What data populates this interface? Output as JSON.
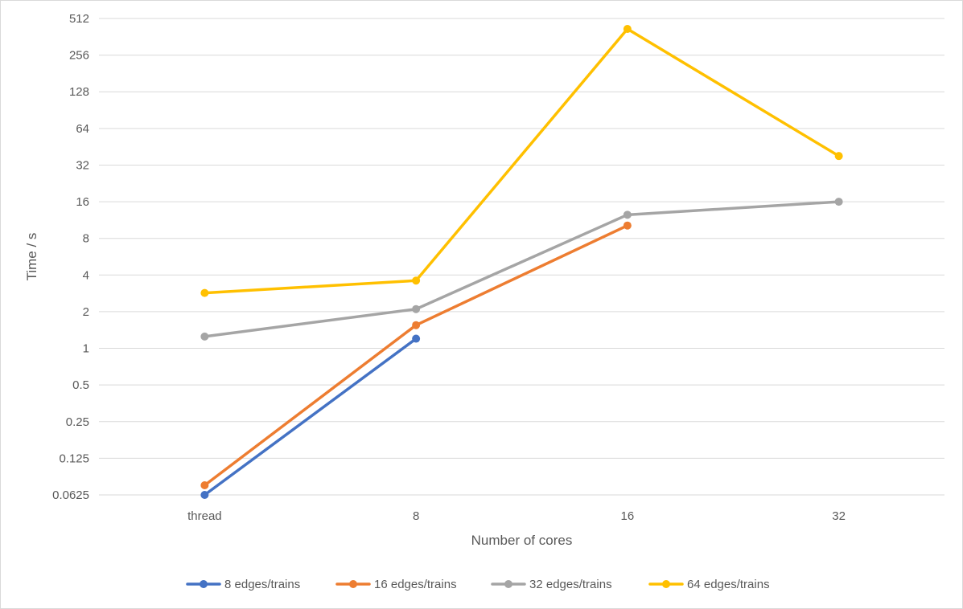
{
  "chart_data": {
    "type": "line",
    "title": "",
    "xlabel": "Number of cores",
    "ylabel": "Time / s",
    "y_scale": "log2",
    "ylim": [
      0.0625,
      512
    ],
    "y_ticks": [
      512,
      256,
      128,
      64,
      32,
      16,
      8,
      4,
      2,
      1,
      0.5,
      0.25,
      0.125,
      0.0625
    ],
    "y_tick_labels": [
      "512",
      "256",
      "128",
      "64",
      "32",
      "16",
      "8",
      "4",
      "2",
      "1",
      "0.5",
      "0.25",
      "0.125",
      "0.0625"
    ],
    "categories": [
      "thread",
      "8",
      "16",
      "32"
    ],
    "grid": "horizontal",
    "legend_position": "bottom",
    "series": [
      {
        "name": "8 edges/trains",
        "color": "#4472C4",
        "values": [
          0.0625,
          1.2,
          null,
          null
        ]
      },
      {
        "name": "16 edges/trains",
        "color": "#ED7D31",
        "values": [
          0.075,
          1.55,
          10.2,
          null
        ]
      },
      {
        "name": "32 edges/trains",
        "color": "#A5A5A5",
        "values": [
          1.25,
          2.1,
          12.5,
          16
        ]
      },
      {
        "name": "64 edges/trains",
        "color": "#FFC000",
        "values": [
          2.85,
          3.6,
          420,
          38
        ]
      }
    ]
  }
}
